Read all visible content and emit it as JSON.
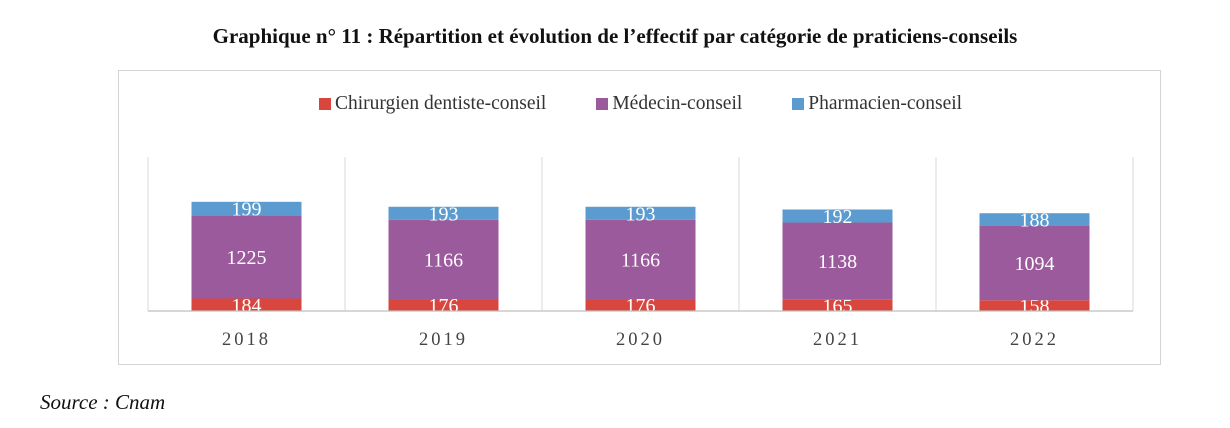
{
  "title": "Graphique n° 11 :  Répartition et évolution de l’effectif par catégorie de praticiens-conseils",
  "source": "Source : Cnam",
  "chart_data": {
    "type": "bar",
    "stacked": true,
    "categories": [
      "2018",
      "2019",
      "2020",
      "2021",
      "2022"
    ],
    "series": [
      {
        "name": "Chirurgien dentiste-conseil",
        "color": "#d9463e",
        "values": [
          184,
          176,
          176,
          165,
          158
        ]
      },
      {
        "name": "Médecin-conseil",
        "color": "#9a5a9b",
        "values": [
          1225,
          1166,
          1166,
          1138,
          1094
        ]
      },
      {
        "name": "Pharmacien-conseil",
        "color": "#5b9bd0",
        "values": [
          199,
          193,
          193,
          192,
          188
        ]
      }
    ],
    "legend_position": "top",
    "grid": false
  }
}
